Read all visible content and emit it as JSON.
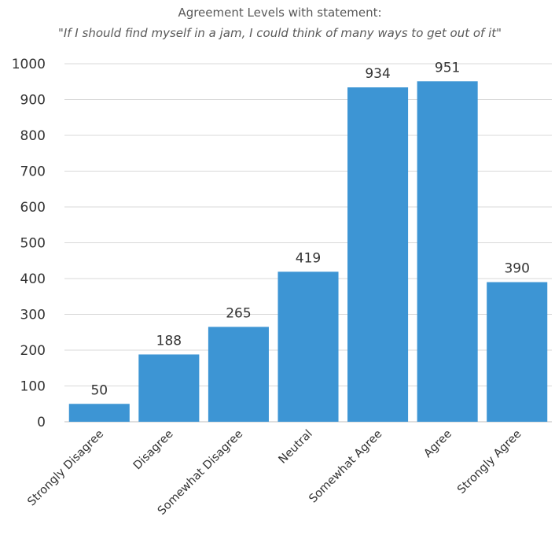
{
  "chart_data": {
    "type": "bar",
    "title": "Agreement Levels with statement:",
    "subtitle": "\"If I should find myself in a jam, I could think of many ways to get out of it\"",
    "xlabel": "",
    "ylabel": "",
    "categories": [
      "Strongly Disagree",
      "Disagree",
      "Somewhat Disagree",
      "Neutral",
      "Somewhat Agree",
      "Agree",
      "Strongly Agree"
    ],
    "values": [
      50,
      188,
      265,
      419,
      934,
      951,
      390
    ],
    "data_labels": [
      "50",
      "188",
      "265",
      "419",
      "934",
      "951",
      "390"
    ],
    "ylim": [
      0,
      1000
    ],
    "yticks": [
      0,
      100,
      200,
      300,
      400,
      500,
      600,
      700,
      800,
      900,
      1000
    ],
    "ytick_labels": [
      "0",
      "100",
      "200",
      "300",
      "400",
      "500",
      "600",
      "700",
      "800",
      "900",
      "1000"
    ],
    "grid": true,
    "legend": "none",
    "bar_color": "#3d95d4"
  }
}
